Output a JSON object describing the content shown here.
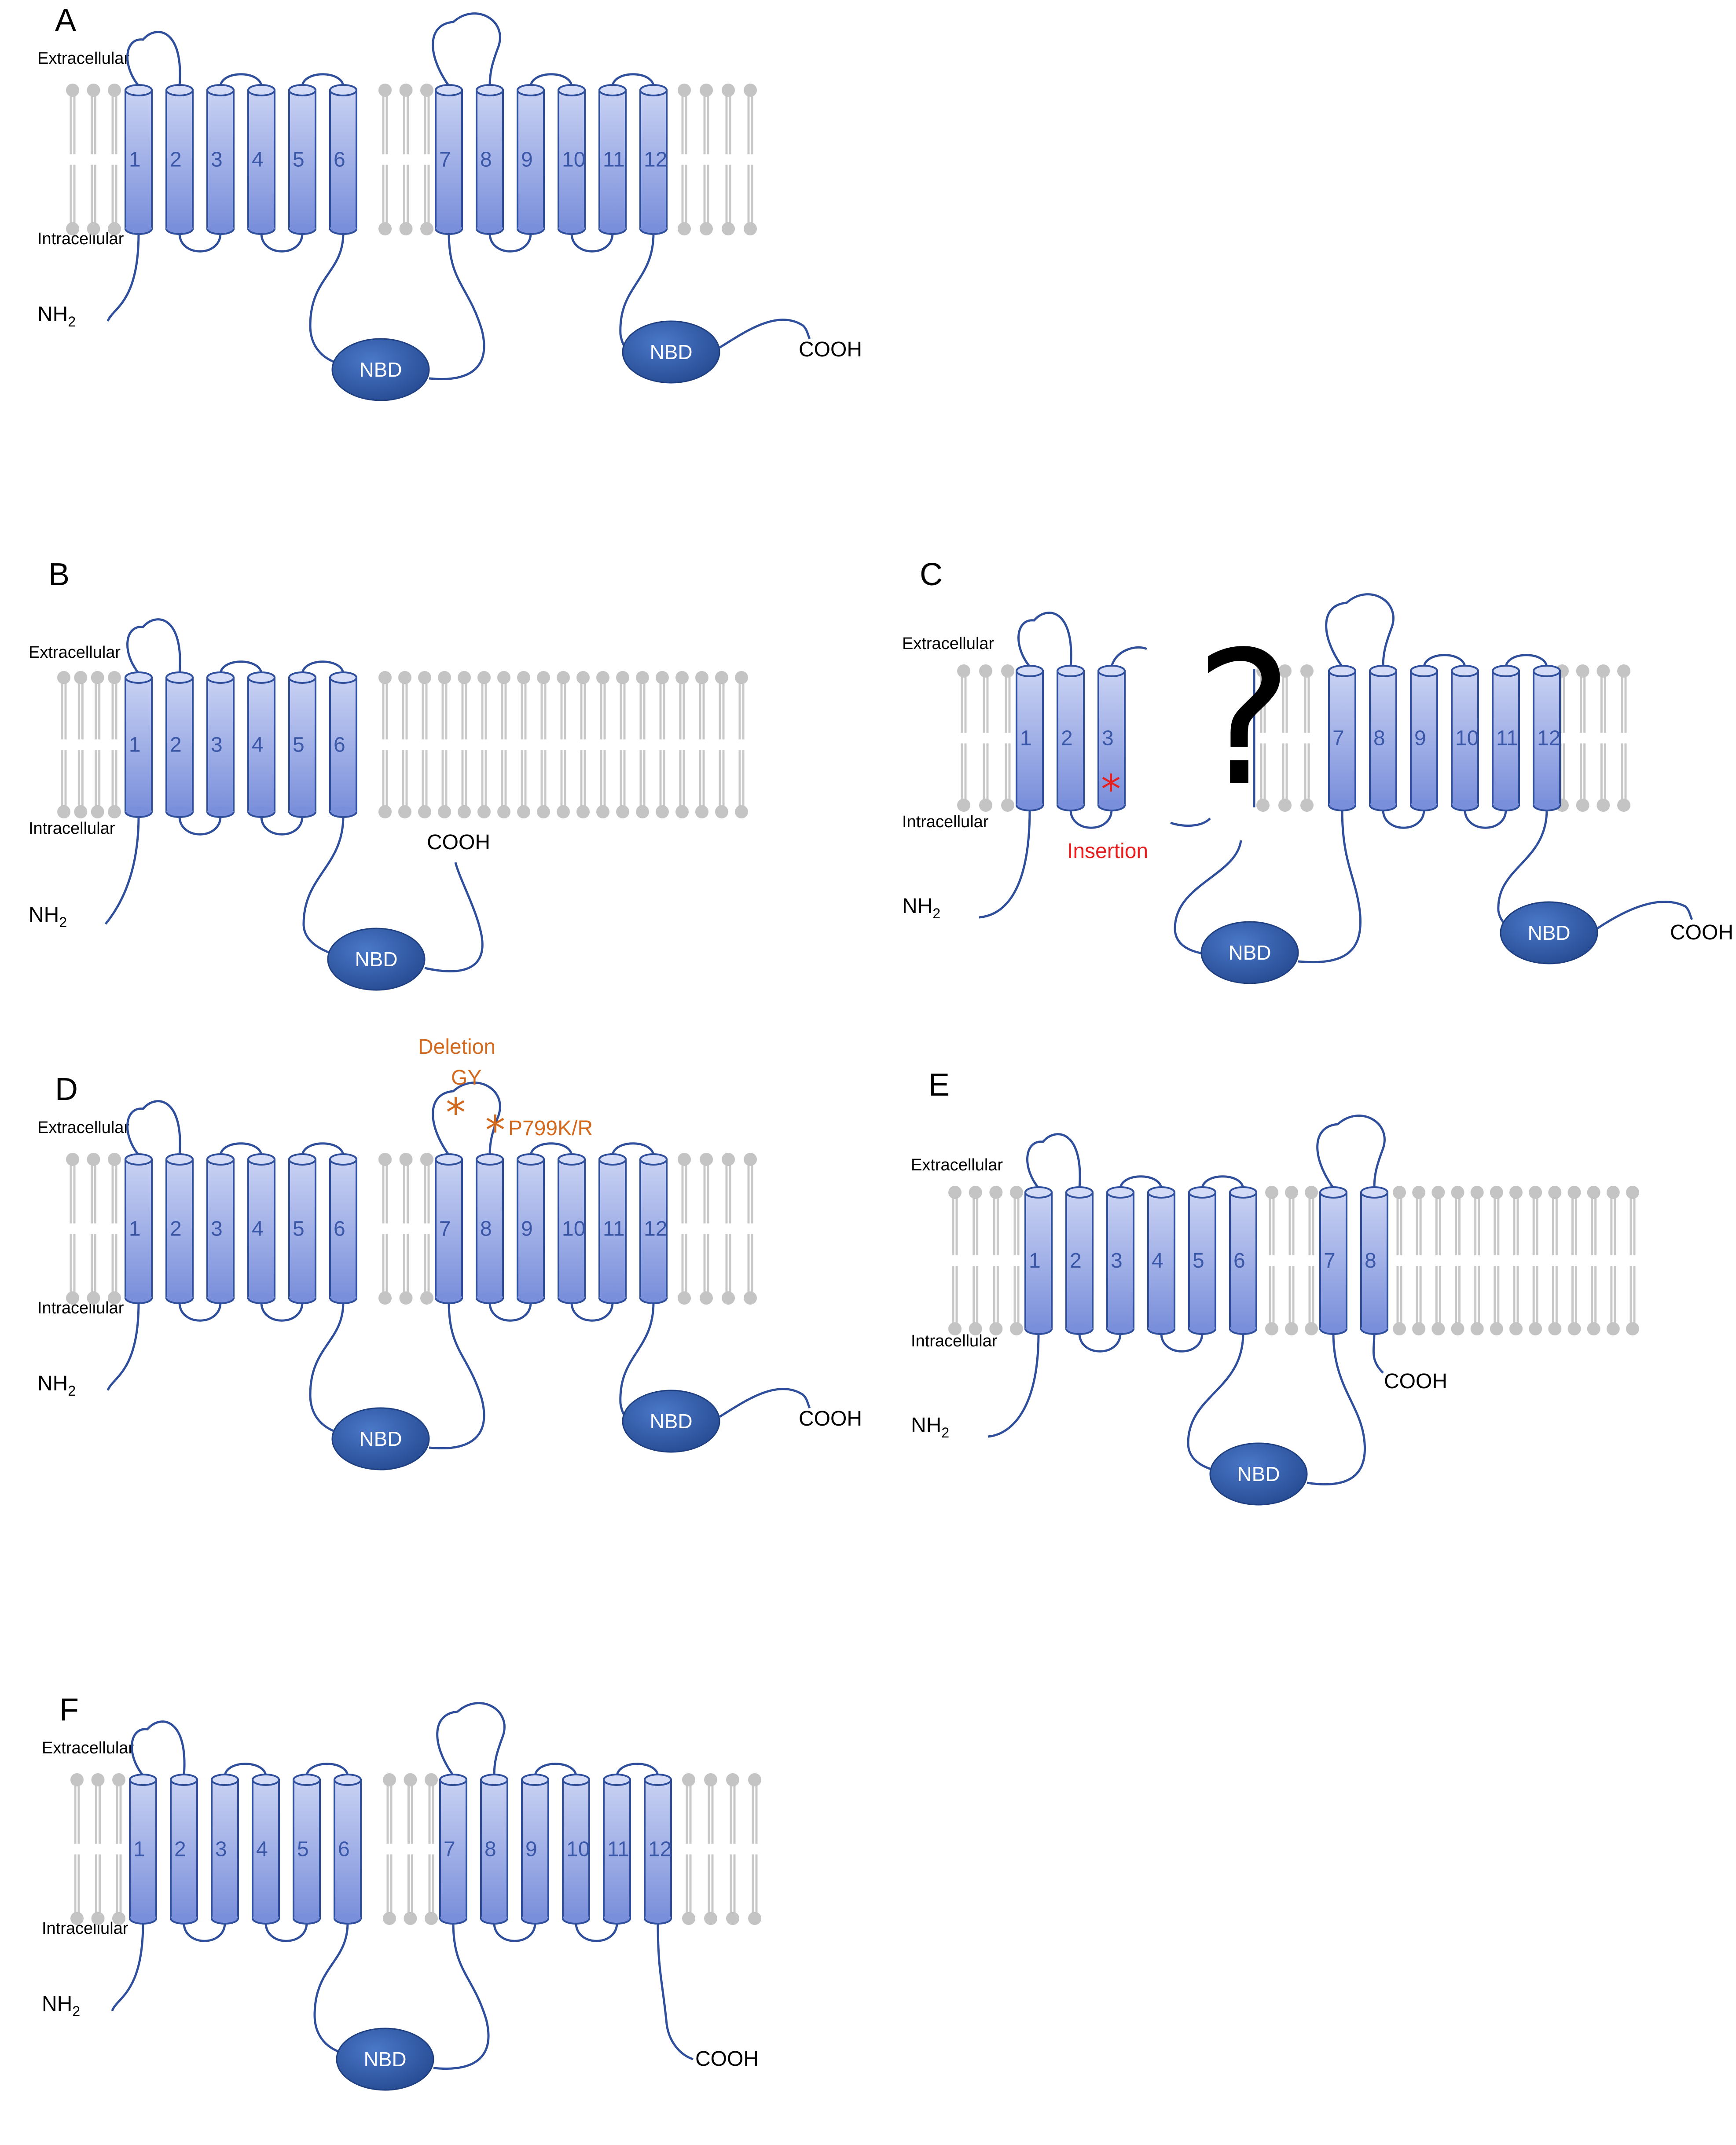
{
  "labels": {
    "extracellular": "Extracellular",
    "intracellular": "Intracellular",
    "nh2": "NH",
    "nh2_sub": "2",
    "cooh": "COOH",
    "nbd": "NBD"
  },
  "panels": [
    {
      "id": "A",
      "letter": "A"
    },
    {
      "id": "B",
      "letter": "B"
    },
    {
      "id": "C",
      "letter": "C",
      "insertion_label": "Insertion",
      "unknown_mark": "?"
    },
    {
      "id": "D",
      "letter": "D",
      "deletion_label": "Deletion",
      "deletion_residues": "GY",
      "substitution_label": "P799K/R"
    },
    {
      "id": "E",
      "letter": "E"
    },
    {
      "id": "F",
      "letter": "F"
    }
  ],
  "helix_numbers": [
    "1",
    "2",
    "3",
    "4",
    "5",
    "6",
    "7",
    "8",
    "9",
    "10",
    "11",
    "12"
  ],
  "colors": {
    "helix_top": "#c7d0f2",
    "helix_bottom": "#7f93dc",
    "helix_stroke": "#2f4f9c",
    "nbd_fill": "#2f5aa8",
    "lipid": "#c4c4c4",
    "deletion_marker": "#d2691e",
    "insertion_marker": "#e62020"
  }
}
